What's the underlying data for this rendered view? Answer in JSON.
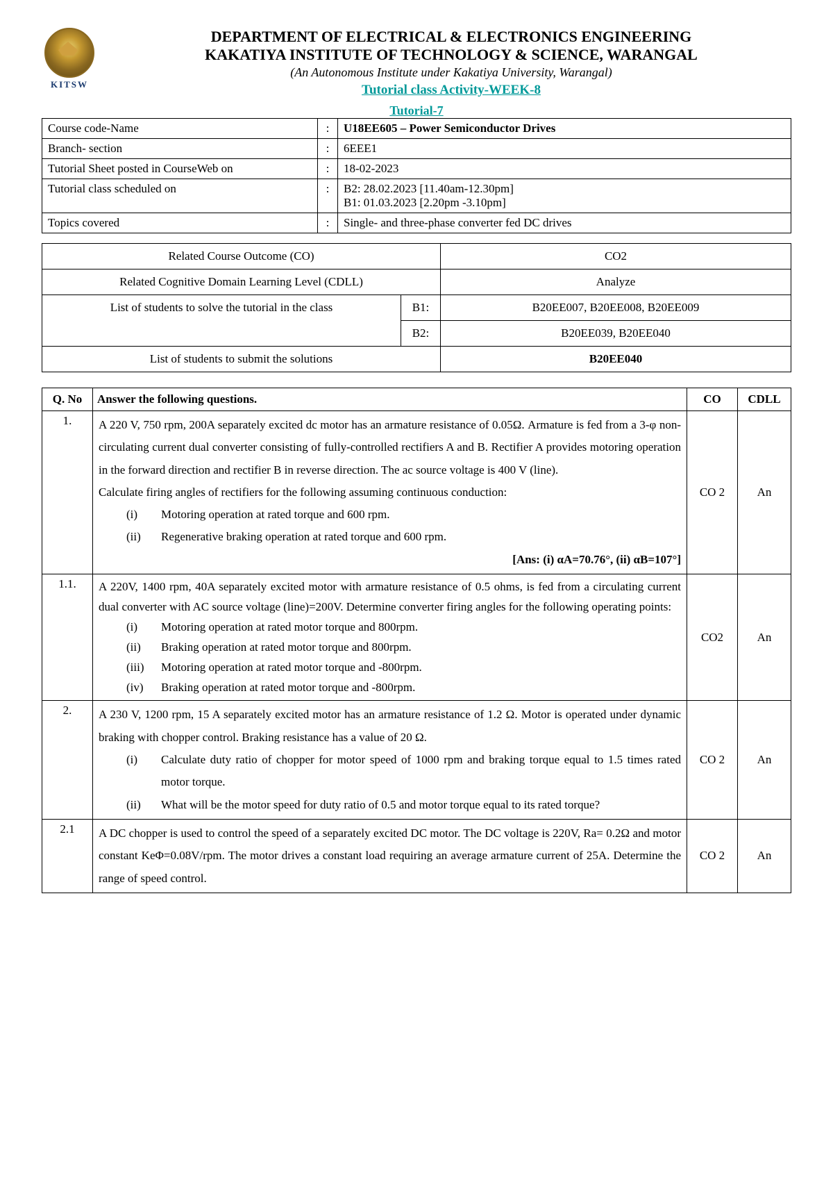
{
  "header": {
    "logo_text": "KITSW",
    "dept": "DEPARTMENT OF ELECTRICAL & ELECTRONICS ENGINEERING",
    "inst": "KAKATIYA INSTITUTE OF TECHNOLOGY & SCIENCE, WARANGAL",
    "autonomous": "(An Autonomous Institute under Kakatiya University, Warangal)",
    "activity": "Tutorial class Activity-WEEK-8",
    "tutorial": "Tutorial-7"
  },
  "info": {
    "rows": [
      {
        "label": "Course code-Name",
        "value": "U18EE605 – Power Semiconductor Drives",
        "bold": true
      },
      {
        "label": "Branch- section",
        "value": "6EEE1"
      },
      {
        "label": "Tutorial Sheet posted in CourseWeb on",
        "value": "18-02-2023"
      },
      {
        "label": "Tutorial class scheduled on",
        "value": "B2: 28.02.2023 [11.40am-12.30pm]\nB1: 01.03.2023 [2.20pm -3.10pm]"
      },
      {
        "label": "Topics covered",
        "value": "Single- and three-phase converter fed DC drives"
      }
    ]
  },
  "co_table": {
    "r1l": "Related Course Outcome (CO)",
    "r1v": "CO2",
    "r2l": "Related Cognitive Domain Learning Level (CDLL)",
    "r2v": "Analyze",
    "r3l": "List of students to solve the tutorial in the class",
    "r3b1": "B1:",
    "r3b1v": "B20EE007, B20EE008, B20EE009",
    "r3b2": "B2:",
    "r3b2v": "B20EE039, B20EE040",
    "r4l": "List of students to submit the solutions",
    "r4v": "B20EE040"
  },
  "questions": {
    "header_qno": "Q. No",
    "header_q": "Answer the following questions.",
    "header_co": "CO",
    "header_cdll": "CDLL",
    "items": [
      {
        "no": "1.",
        "co": "CO 2",
        "cdll": "An",
        "para1": "A 220 V, 750 rpm, 200A separately excited dc motor has an armature resistance of 0.05Ω. Armature is fed from a 3-φ non-circulating current dual converter consisting of fully-controlled rectifiers A and B. Rectifier A provides motoring operation in the forward direction and rectifier B in reverse direction. The ac source voltage is 400 V (line).",
        "para2": "Calculate firing angles of rectifiers for the following assuming continuous conduction:",
        "subs": [
          {
            "n": "(i)",
            "t": "Motoring operation at rated torque and 600 rpm."
          },
          {
            "n": "(ii)",
            "t": "Regenerative braking operation at rated torque and 600 rpm."
          }
        ],
        "ans": "[Ans: (i) αA=70.76°, (ii) αB=107°]"
      },
      {
        "no": "1.1.",
        "co": "CO2",
        "cdll": "An",
        "para1": "A 220V, 1400 rpm, 40A separately excited motor with armature resistance of 0.5 ohms, is fed from a circulating current dual converter with AC source voltage (line)=200V. Determine converter firing angles for the following operating points:",
        "subs": [
          {
            "n": "(i)",
            "t": "Motoring operation at rated motor torque and 800rpm."
          },
          {
            "n": "(ii)",
            "t": "Braking operation at rated motor torque and 800rpm."
          },
          {
            "n": "(iii)",
            "t": "Motoring operation at rated motor torque and -800rpm."
          },
          {
            "n": "(iv)",
            "t": "Braking operation at rated motor torque and -800rpm."
          }
        ]
      },
      {
        "no": "2.",
        "co": "CO 2",
        "cdll": "An",
        "para1": "A 230 V, 1200 rpm, 15 A separately excited motor has an armature resistance of 1.2 Ω. Motor is operated under dynamic braking with chopper control. Braking resistance has a value of 20 Ω.",
        "subs": [
          {
            "n": "(i)",
            "t": "Calculate duty ratio of chopper for motor speed of 1000 rpm and braking torque equal to 1.5 times rated motor torque."
          },
          {
            "n": "(ii)",
            "t": "What will be the motor speed for duty ratio of 0.5 and motor torque equal to its rated torque?"
          }
        ]
      },
      {
        "no": "2.1",
        "co": "CO 2",
        "cdll": "An",
        "para1": "A DC chopper is used to control the speed of a separately excited DC motor. The DC voltage is 220V, Ra= 0.2Ω and motor constant KeΦ=0.08V/rpm. The motor drives a constant load requiring an average armature current of 25A. Determine the range of speed control."
      }
    ]
  },
  "colors": {
    "teal": "#009999",
    "text": "#000000",
    "bg": "#ffffff",
    "logo_text": "#1a3a6e"
  }
}
